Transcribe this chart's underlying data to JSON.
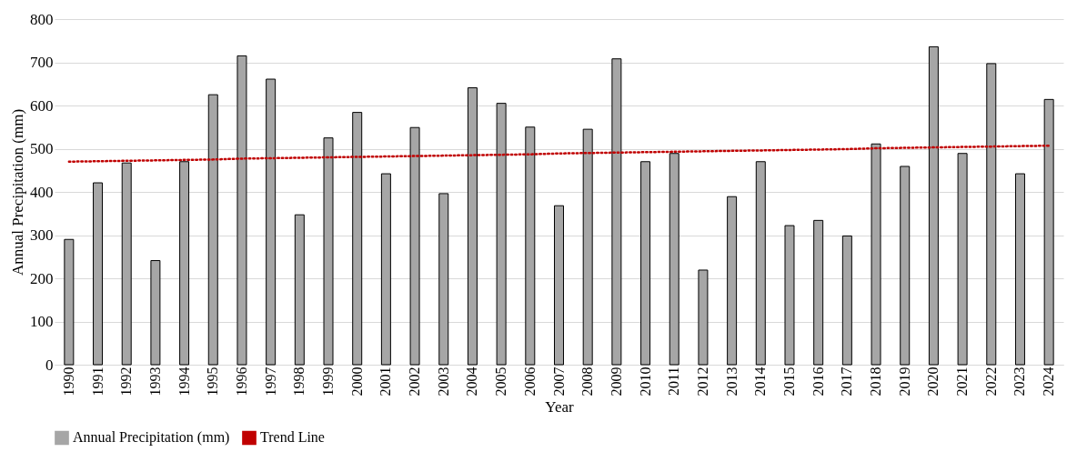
{
  "chart_data": {
    "type": "bar",
    "xlabel": "Year",
    "ylabel": "Annual Precipitation (mm)",
    "categories": [
      "1990",
      "1991",
      "1992",
      "1993",
      "1994",
      "1995",
      "1996",
      "1997",
      "1998",
      "1999",
      "2000",
      "2001",
      "2002",
      "2003",
      "2004",
      "2005",
      "2006",
      "2007",
      "2008",
      "2009",
      "2010",
      "2011",
      "2012",
      "2013",
      "2014",
      "2015",
      "2016",
      "2017",
      "2018",
      "2019",
      "2020",
      "2021",
      "2022",
      "2023",
      "2024"
    ],
    "series": [
      {
        "name": "Annual Precipitation (mm)",
        "color": "#a6a6a6",
        "values": [
          290,
          421,
          467,
          241,
          470,
          625,
          715,
          661,
          347,
          525,
          584,
          442,
          549,
          396,
          641,
          605,
          550,
          368,
          545,
          708,
          470,
          489,
          219,
          389,
          470,
          322,
          334,
          298,
          511,
          459,
          736,
          489,
          697,
          442,
          614
        ]
      },
      {
        "name": "Trend Line",
        "type": "line",
        "color": "#c00000",
        "line_style": "dotted",
        "values": [
          470,
          471,
          472,
          473,
          474,
          475,
          477,
          478,
          479,
          480,
          481,
          482,
          483,
          484,
          485,
          486,
          487,
          489,
          490,
          491,
          492,
          493,
          494,
          495,
          496,
          497,
          498,
          499,
          501,
          502,
          503,
          504,
          505,
          506,
          507
        ]
      }
    ],
    "ylim": [
      0,
      800
    ],
    "yticks": [
      0,
      100,
      200,
      300,
      400,
      500,
      600,
      700,
      800
    ],
    "grid": "y",
    "legend": "bottom"
  }
}
